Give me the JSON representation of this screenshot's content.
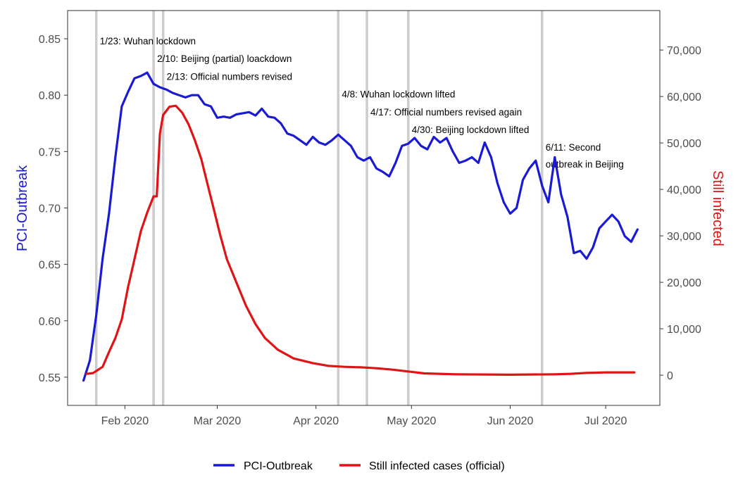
{
  "chart_data": {
    "type": "line",
    "xlabel": "",
    "x_tick_labels": [
      "Feb 2020",
      "Mar 2020",
      "Apr 2020",
      "May 2020",
      "Jun 2020",
      "Jul 2020"
    ],
    "x_tick_dates": [
      "2020-02-01",
      "2020-03-01",
      "2020-04-01",
      "2020-05-01",
      "2020-06-01",
      "2020-07-01"
    ],
    "xlim": [
      "2020-01-14",
      "2020-07-18"
    ],
    "y_left": {
      "label": "PCI-Outbreak",
      "range": [
        0.525,
        0.875
      ],
      "ticks": [
        "0.55",
        "0.60",
        "0.65",
        "0.70",
        "0.75",
        "0.80",
        "0.85"
      ],
      "tick_values": [
        0.55,
        0.6,
        0.65,
        0.7,
        0.75,
        0.8,
        0.85
      ],
      "color": "#1a1ad4"
    },
    "y_right": {
      "label": "Still infected",
      "range": [
        -6500,
        78500
      ],
      "ticks": [
        "0",
        "10,000",
        "20,000",
        "30,000",
        "40,000",
        "50,000",
        "60,000",
        "70,000"
      ],
      "tick_values": [
        0,
        10000,
        20000,
        30000,
        40000,
        50000,
        60000,
        70000
      ],
      "color": "#e01414"
    },
    "grid": false,
    "legend_position": "bottom",
    "series": [
      {
        "name": "PCI-Outbreak",
        "axis": "left",
        "color": "#1a1ad4",
        "points": [
          [
            "2020-01-19",
            0.547
          ],
          [
            "2020-01-21",
            0.565
          ],
          [
            "2020-01-23",
            0.605
          ],
          [
            "2020-01-25",
            0.655
          ],
          [
            "2020-01-27",
            0.695
          ],
          [
            "2020-01-29",
            0.745
          ],
          [
            "2020-01-31",
            0.79
          ],
          [
            "2020-02-02",
            0.803
          ],
          [
            "2020-02-04",
            0.815
          ],
          [
            "2020-02-06",
            0.817
          ],
          [
            "2020-02-08",
            0.82
          ],
          [
            "2020-02-10",
            0.81
          ],
          [
            "2020-02-12",
            0.807
          ],
          [
            "2020-02-14",
            0.805
          ],
          [
            "2020-02-16",
            0.802
          ],
          [
            "2020-02-18",
            0.8
          ],
          [
            "2020-02-20",
            0.798
          ],
          [
            "2020-02-22",
            0.8
          ],
          [
            "2020-02-24",
            0.8
          ],
          [
            "2020-02-26",
            0.792
          ],
          [
            "2020-02-28",
            0.79
          ],
          [
            "2020-03-01",
            0.78
          ],
          [
            "2020-03-03",
            0.781
          ],
          [
            "2020-03-05",
            0.78
          ],
          [
            "2020-03-07",
            0.783
          ],
          [
            "2020-03-09",
            0.784
          ],
          [
            "2020-03-11",
            0.785
          ],
          [
            "2020-03-13",
            0.782
          ],
          [
            "2020-03-15",
            0.788
          ],
          [
            "2020-03-17",
            0.781
          ],
          [
            "2020-03-19",
            0.78
          ],
          [
            "2020-03-21",
            0.775
          ],
          [
            "2020-03-23",
            0.766
          ],
          [
            "2020-03-25",
            0.764
          ],
          [
            "2020-03-27",
            0.76
          ],
          [
            "2020-03-29",
            0.756
          ],
          [
            "2020-03-31",
            0.763
          ],
          [
            "2020-04-02",
            0.758
          ],
          [
            "2020-04-04",
            0.756
          ],
          [
            "2020-04-06",
            0.76
          ],
          [
            "2020-04-08",
            0.765
          ],
          [
            "2020-04-10",
            0.76
          ],
          [
            "2020-04-12",
            0.755
          ],
          [
            "2020-04-14",
            0.745
          ],
          [
            "2020-04-16",
            0.742
          ],
          [
            "2020-04-18",
            0.745
          ],
          [
            "2020-04-20",
            0.735
          ],
          [
            "2020-04-22",
            0.732
          ],
          [
            "2020-04-24",
            0.728
          ],
          [
            "2020-04-26",
            0.74
          ],
          [
            "2020-04-28",
            0.755
          ],
          [
            "2020-04-30",
            0.757
          ],
          [
            "2020-05-02",
            0.762
          ],
          [
            "2020-05-04",
            0.755
          ],
          [
            "2020-05-06",
            0.752
          ],
          [
            "2020-05-08",
            0.763
          ],
          [
            "2020-05-10",
            0.758
          ],
          [
            "2020-05-12",
            0.762
          ],
          [
            "2020-05-14",
            0.75
          ],
          [
            "2020-05-16",
            0.74
          ],
          [
            "2020-05-18",
            0.742
          ],
          [
            "2020-05-20",
            0.745
          ],
          [
            "2020-05-22",
            0.74
          ],
          [
            "2020-05-24",
            0.758
          ],
          [
            "2020-05-26",
            0.745
          ],
          [
            "2020-05-28",
            0.722
          ],
          [
            "2020-05-30",
            0.705
          ],
          [
            "2020-06-01",
            0.695
          ],
          [
            "2020-06-03",
            0.7
          ],
          [
            "2020-06-05",
            0.725
          ],
          [
            "2020-06-07",
            0.735
          ],
          [
            "2020-06-09",
            0.742
          ],
          [
            "2020-06-11",
            0.72
          ],
          [
            "2020-06-13",
            0.705
          ],
          [
            "2020-06-15",
            0.745
          ],
          [
            "2020-06-17",
            0.712
          ],
          [
            "2020-06-19",
            0.692
          ],
          [
            "2020-06-21",
            0.66
          ],
          [
            "2020-06-23",
            0.662
          ],
          [
            "2020-06-25",
            0.655
          ],
          [
            "2020-06-27",
            0.665
          ],
          [
            "2020-06-29",
            0.682
          ],
          [
            "2020-07-01",
            0.688
          ],
          [
            "2020-07-03",
            0.694
          ],
          [
            "2020-07-05",
            0.688
          ],
          [
            "2020-07-07",
            0.675
          ],
          [
            "2020-07-09",
            0.67
          ],
          [
            "2020-07-11",
            0.681
          ]
        ]
      },
      {
        "name": "Still infected cases (official)",
        "axis": "right",
        "color": "#e01414",
        "points": [
          [
            "2020-01-20",
            300
          ],
          [
            "2020-01-22",
            450
          ],
          [
            "2020-01-25",
            1800
          ],
          [
            "2020-01-27",
            5000
          ],
          [
            "2020-01-29",
            8000
          ],
          [
            "2020-01-31",
            12000
          ],
          [
            "2020-02-02",
            19000
          ],
          [
            "2020-02-04",
            25000
          ],
          [
            "2020-02-06",
            31000
          ],
          [
            "2020-02-08",
            35000
          ],
          [
            "2020-02-10",
            38500
          ],
          [
            "2020-02-11",
            38500
          ],
          [
            "2020-02-12",
            52000
          ],
          [
            "2020-02-13",
            56000
          ],
          [
            "2020-02-15",
            57800
          ],
          [
            "2020-02-17",
            58000
          ],
          [
            "2020-02-19",
            56500
          ],
          [
            "2020-02-21",
            54000
          ],
          [
            "2020-02-23",
            50500
          ],
          [
            "2020-02-25",
            46500
          ],
          [
            "2020-02-27",
            41000
          ],
          [
            "2020-02-29",
            35500
          ],
          [
            "2020-03-02",
            30000
          ],
          [
            "2020-03-04",
            25000
          ],
          [
            "2020-03-07",
            20000
          ],
          [
            "2020-03-10",
            15000
          ],
          [
            "2020-03-13",
            11000
          ],
          [
            "2020-03-16",
            8000
          ],
          [
            "2020-03-20",
            5500
          ],
          [
            "2020-03-25",
            3600
          ],
          [
            "2020-03-31",
            2600
          ],
          [
            "2020-04-05",
            2000
          ],
          [
            "2020-04-10",
            1800
          ],
          [
            "2020-04-15",
            1700
          ],
          [
            "2020-04-20",
            1500
          ],
          [
            "2020-04-25",
            1200
          ],
          [
            "2020-04-30",
            800
          ],
          [
            "2020-05-05",
            400
          ],
          [
            "2020-05-15",
            200
          ],
          [
            "2020-06-01",
            100
          ],
          [
            "2020-06-15",
            200
          ],
          [
            "2020-06-20",
            300
          ],
          [
            "2020-06-25",
            500
          ],
          [
            "2020-07-01",
            600
          ],
          [
            "2020-07-10",
            600
          ]
        ]
      }
    ],
    "events": [
      {
        "date": "2020-01-23",
        "lines": [
          "1/23: Wuhan lockdown"
        ]
      },
      {
        "date": "2020-02-10",
        "lines": [
          "2/10: Beijing (partial) loackdown"
        ]
      },
      {
        "date": "2020-02-13",
        "lines": [
          "2/13: Official numbers revised"
        ]
      },
      {
        "date": "2020-04-08",
        "lines": [
          "4/8: Wuhan lockdown lifted"
        ]
      },
      {
        "date": "2020-04-17",
        "lines": [
          "4/17: Official numbers revised again"
        ]
      },
      {
        "date": "2020-04-30",
        "lines": [
          "4/30: Beijing lockdown lifted"
        ]
      },
      {
        "date": "2020-06-11",
        "lines": [
          "6/11: Second",
          "outbreak in Beijing"
        ]
      }
    ]
  }
}
